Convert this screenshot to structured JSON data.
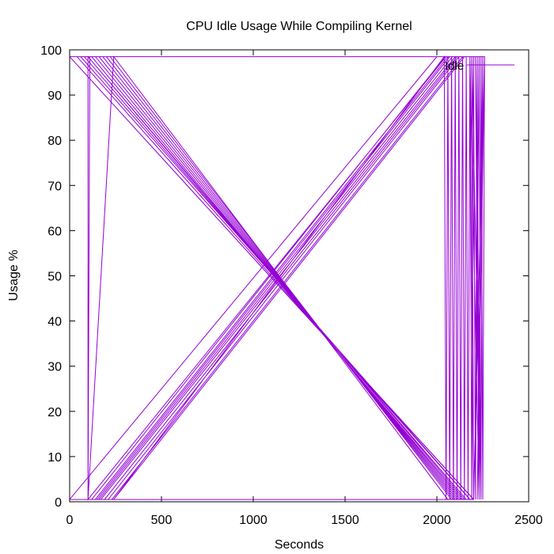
{
  "chart_data": {
    "type": "line",
    "title": "CPU Idle Usage While Compiling Kernel",
    "xlabel": "Seconds",
    "ylabel": "Usage %",
    "xlim": [
      0,
      2500
    ],
    "ylim": [
      0,
      100
    ],
    "x_ticks": [
      0,
      500,
      1000,
      1500,
      2000,
      2500
    ],
    "y_ticks": [
      0,
      10,
      20,
      30,
      40,
      50,
      60,
      70,
      80,
      90,
      100
    ],
    "grid": false,
    "legend_position": "top-right",
    "series": [
      {
        "name": "Idle",
        "color": "#9400d3",
        "x": [
          0,
          2200,
          2195,
          0,
          40,
          2180,
          2175,
          60,
          80,
          2160,
          2150,
          100,
          110,
          100,
          100,
          2140,
          2130,
          120,
          140,
          2120,
          2110,
          160,
          180,
          2100,
          2090,
          200,
          220,
          2080,
          2060,
          240,
          100,
          2050,
          2045,
          120,
          140,
          2060,
          2070,
          150,
          160,
          2085,
          2100,
          170,
          190,
          2110,
          2120,
          210,
          230,
          2140,
          2150,
          240,
          2040,
          2050,
          2060,
          2070,
          2080,
          2090,
          2100,
          2110,
          2120,
          2130,
          2140,
          2150,
          2160,
          2170,
          2180,
          2190,
          2200,
          2210,
          2220,
          2230,
          2240,
          2250,
          2260,
          0,
          2000,
          0,
          2200,
          2180,
          2230,
          2210,
          2240,
          2250,
          2220,
          2260,
          2200,
          2190,
          2240,
          2230,
          2210
        ],
        "y": [
          98.5,
          0.5,
          0.8,
          98.5,
          98.5,
          0.5,
          0.8,
          98.5,
          98.5,
          0.5,
          0.5,
          98.5,
          98.5,
          0.5,
          98.5,
          0.5,
          0.5,
          98.5,
          98.5,
          0.5,
          0.5,
          98.5,
          98.5,
          0.5,
          0.5,
          98.5,
          98.5,
          0.5,
          0.5,
          98.5,
          0.5,
          98.5,
          98.5,
          0.5,
          0.5,
          98.5,
          98.5,
          0.5,
          0.5,
          98.5,
          98.5,
          0.5,
          0.5,
          98.5,
          98.5,
          0.5,
          0.5,
          98.5,
          98.5,
          0.5,
          98.5,
          0.5,
          98.5,
          0.5,
          98.5,
          0.5,
          98.5,
          0.5,
          98.5,
          0.5,
          98.5,
          0.5,
          98.5,
          0.5,
          98.5,
          0.5,
          98.5,
          0.5,
          98.5,
          0.5,
          98.5,
          0.5,
          98.5,
          98.5,
          98.5,
          0.5,
          0.5,
          98.5,
          0.5,
          98.5,
          0.5,
          98.5,
          0.5,
          98.5,
          0.5,
          98.5,
          0.5,
          98.5,
          0.5
        ]
      }
    ]
  }
}
